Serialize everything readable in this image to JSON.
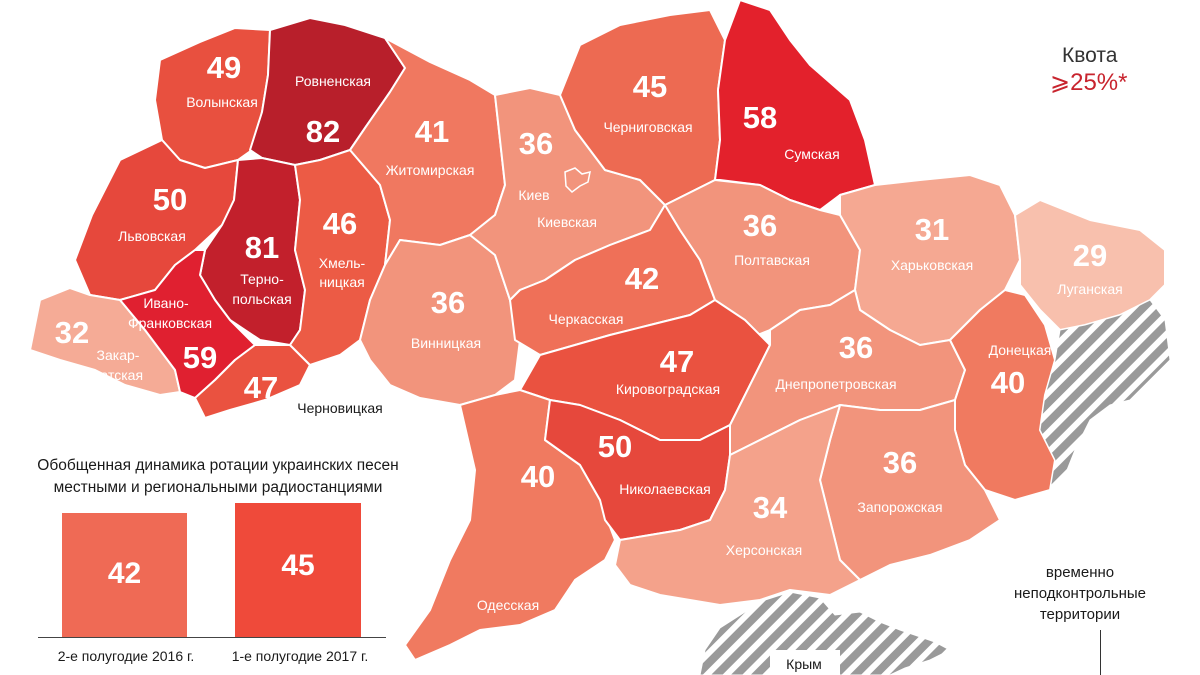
{
  "colors": {
    "c82": "#b81f2b",
    "c81": "#c2202c",
    "c59": "#e02030",
    "c58": "#e3212c",
    "c50": "#e6483c",
    "c49": "#e8503f",
    "c47": "#ea5240",
    "c46": "#ec5b45",
    "c45": "#ed6a52",
    "c42": "#ef7058",
    "c41": "#f07860",
    "c40": "#f07a60",
    "c36": "#f2947c",
    "c34": "#f4a28b",
    "c32": "#f5ab96",
    "c31": "#f5a892",
    "c29": "#f8c0ad",
    "occupied": "#9a9a9a"
  },
  "map": {
    "regions": [
      {
        "key": "volyn",
        "value": "49",
        "name": "Волынская"
      },
      {
        "key": "rivne",
        "value": "82",
        "name": "Ровненская"
      },
      {
        "key": "lviv",
        "value": "50",
        "name": "Львовская"
      },
      {
        "key": "ternopil",
        "value": "81",
        "name1": "Терно-",
        "name2": "польская"
      },
      {
        "key": "zakarpattia",
        "value": "32",
        "name1": "Закар-",
        "name2": "патская"
      },
      {
        "key": "ivano",
        "value": "59",
        "name1": "Ивано-",
        "name2": "Франковская"
      },
      {
        "key": "chernivtsi",
        "value": "47",
        "name": "Черновицкая"
      },
      {
        "key": "khmelnytskyi",
        "value": "46",
        "name1": "Хмель-",
        "name2": "ницкая"
      },
      {
        "key": "zhytomyr",
        "value": "41",
        "name": "Житомирская"
      },
      {
        "key": "vinnytsia",
        "value": "36",
        "name": "Винницкая"
      },
      {
        "key": "kyivobl",
        "value": "36",
        "name": "Киевская",
        "city": "Киев"
      },
      {
        "key": "chernihiv",
        "value": "45",
        "name": "Черниговская"
      },
      {
        "key": "sumy",
        "value": "58",
        "name": "Сумская"
      },
      {
        "key": "cherkasy",
        "value": "42",
        "name": "Черкасская"
      },
      {
        "key": "poltava",
        "value": "36",
        "name": "Полтавская"
      },
      {
        "key": "kharkiv",
        "value": "31",
        "name": "Харьковская"
      },
      {
        "key": "luhansk",
        "value": "29",
        "name": "Луганская"
      },
      {
        "key": "kirovohrad",
        "value": "47",
        "name": "Кировоградская"
      },
      {
        "key": "dnipro",
        "value": "36",
        "name": "Днепропетровская"
      },
      {
        "key": "donetsk",
        "value": "40",
        "name": "Донецкая"
      },
      {
        "key": "odesa",
        "value": "40",
        "name": "Одесская"
      },
      {
        "key": "mykolaiv",
        "value": "50",
        "name": "Николаевская"
      },
      {
        "key": "zaporizhzhia",
        "value": "36",
        "name": "Запорожская"
      },
      {
        "key": "kherson",
        "value": "34",
        "name": "Херсонская"
      }
    ],
    "crimea_label": "Крым"
  },
  "quota": {
    "title": "Квота",
    "value": "⩾25%*"
  },
  "chart": {
    "title_line1": "Обобщенная динамика ротации украинских песен",
    "title_line2": "местными и региональными радиостанциями",
    "bars": [
      {
        "value": "42",
        "label": "2-е полугодие 2016 г."
      },
      {
        "value": "45",
        "label": "1-е полугодие 2017 г."
      }
    ]
  },
  "legend": {
    "line1": "временно",
    "line2": "неподконтрольные",
    "line3": "территории"
  }
}
